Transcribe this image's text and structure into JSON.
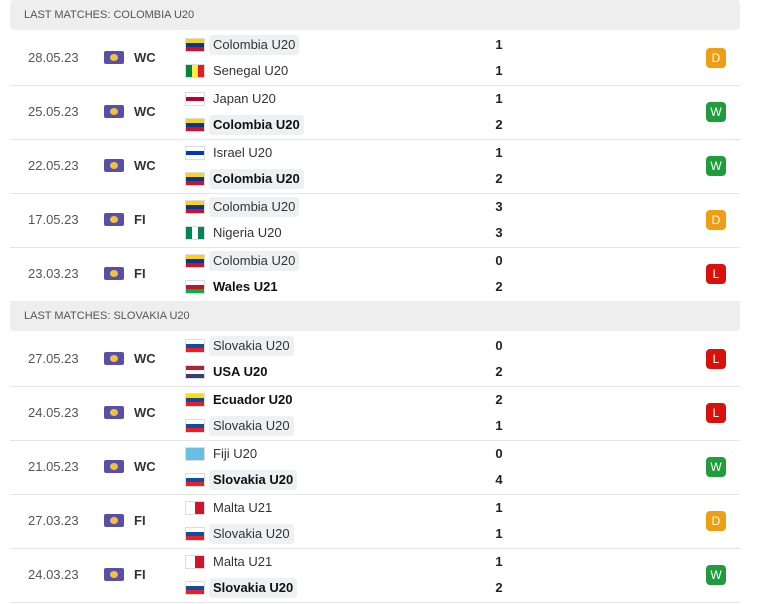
{
  "sections": [
    {
      "title": "LAST MATCHES: COLOMBIA U20",
      "matches": [
        {
          "date": "28.05.23",
          "competition": "WC",
          "result": "D",
          "teams": [
            {
              "name": "Colombia U20",
              "score": 1,
              "flag": [
                "#fcd116",
                "#003893",
                "#ce1126"
              ],
              "highlight": true
            },
            {
              "name": "Senegal U20",
              "score": 1,
              "flag": [
                "#00853f",
                "#fdef42",
                "#e31b23"
              ],
              "flag_vertical": true
            }
          ]
        },
        {
          "date": "25.05.23",
          "competition": "WC",
          "result": "W",
          "teams": [
            {
              "name": "Japan U20",
              "score": 1,
              "flag": [
                "#ffffff",
                "#bc002d",
                "#ffffff"
              ]
            },
            {
              "name": "Colombia U20",
              "score": 2,
              "flag": [
                "#fcd116",
                "#003893",
                "#ce1126"
              ],
              "highlight": true,
              "bold": true
            }
          ]
        },
        {
          "date": "22.05.23",
          "competition": "WC",
          "result": "W",
          "teams": [
            {
              "name": "Israel U20",
              "score": 1,
              "flag": [
                "#ffffff",
                "#0038b8",
                "#ffffff"
              ]
            },
            {
              "name": "Colombia U20",
              "score": 2,
              "flag": [
                "#fcd116",
                "#003893",
                "#ce1126"
              ],
              "highlight": true,
              "bold": true
            }
          ]
        },
        {
          "date": "17.05.23",
          "competition": "FI",
          "result": "D",
          "teams": [
            {
              "name": "Colombia U20",
              "score": 3,
              "flag": [
                "#fcd116",
                "#003893",
                "#ce1126"
              ],
              "highlight": true
            },
            {
              "name": "Nigeria U20",
              "score": 3,
              "flag": [
                "#008751",
                "#ffffff",
                "#008751"
              ],
              "flag_vertical": true
            }
          ]
        },
        {
          "date": "23.03.23",
          "competition": "FI",
          "result": "L",
          "teams": [
            {
              "name": "Colombia U20",
              "score": 0,
              "flag": [
                "#fcd116",
                "#003893",
                "#ce1126"
              ],
              "highlight": true
            },
            {
              "name": "Wales U21",
              "score": 2,
              "flag": [
                "#ffffff",
                "#c8102e",
                "#00b140"
              ],
              "bold": true
            }
          ]
        }
      ]
    },
    {
      "title": "LAST MATCHES: SLOVAKIA U20",
      "matches": [
        {
          "date": "27.05.23",
          "competition": "WC",
          "result": "L",
          "teams": [
            {
              "name": "Slovakia U20",
              "score": 0,
              "flag": [
                "#ffffff",
                "#0b4ea2",
                "#ee1c25"
              ],
              "highlight": true
            },
            {
              "name": "USA U20",
              "score": 2,
              "flag": [
                "#b22234",
                "#ffffff",
                "#3c3b6e"
              ],
              "bold": true
            }
          ]
        },
        {
          "date": "24.05.23",
          "competition": "WC",
          "result": "L",
          "teams": [
            {
              "name": "Ecuador U20",
              "score": 2,
              "flag": [
                "#ffdd00",
                "#034ea2",
                "#ed1c24"
              ],
              "bold": true
            },
            {
              "name": "Slovakia U20",
              "score": 1,
              "flag": [
                "#ffffff",
                "#0b4ea2",
                "#ee1c25"
              ],
              "highlight": true
            }
          ]
        },
        {
          "date": "21.05.23",
          "competition": "WC",
          "result": "W",
          "teams": [
            {
              "name": "Fiji U20",
              "score": 0,
              "flag": [
                "#68bfe5",
                "#68bfe5",
                "#68bfe5"
              ]
            },
            {
              "name": "Slovakia U20",
              "score": 4,
              "flag": [
                "#ffffff",
                "#0b4ea2",
                "#ee1c25"
              ],
              "highlight": true,
              "bold": true
            }
          ]
        },
        {
          "date": "27.03.23",
          "competition": "FI",
          "result": "D",
          "teams": [
            {
              "name": "Malta U21",
              "score": 1,
              "flag": [
                "#ffffff",
                "#cf142b"
              ],
              "flag_vertical": true
            },
            {
              "name": "Slovakia U20",
              "score": 1,
              "flag": [
                "#ffffff",
                "#0b4ea2",
                "#ee1c25"
              ],
              "highlight": true
            }
          ]
        },
        {
          "date": "24.03.23",
          "competition": "FI",
          "result": "W",
          "teams": [
            {
              "name": "Malta U21",
              "score": 1,
              "flag": [
                "#ffffff",
                "#cf142b"
              ],
              "flag_vertical": true
            },
            {
              "name": "Slovakia U20",
              "score": 2,
              "flag": [
                "#ffffff",
                "#0b4ea2",
                "#ee1c25"
              ],
              "highlight": true,
              "bold": true
            }
          ]
        }
      ]
    }
  ]
}
